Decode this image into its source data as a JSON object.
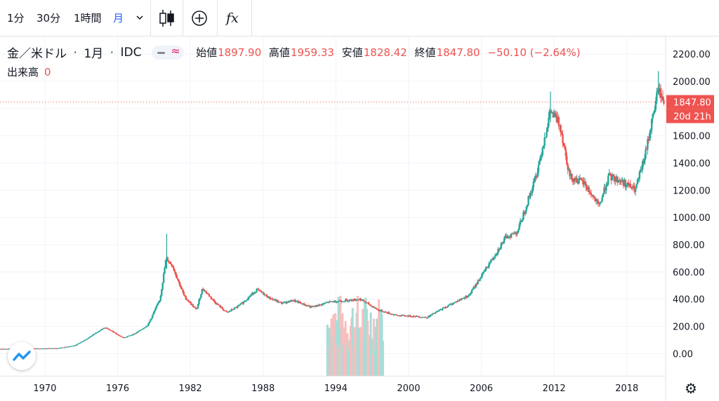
{
  "toolbar": {
    "interval_1m": "1分",
    "interval_30m": "30分",
    "interval_1h": "1時間",
    "interval_month": "月",
    "dropdown_icon": "chevron-down-icon",
    "candles_icon": "candlestick-icon",
    "add_icon": "plus-circle-icon",
    "indicator_label": "fx"
  },
  "legend": {
    "symbol": "金／米ドル",
    "separator": "·",
    "interval": "1月",
    "source": "IDC",
    "open_label": "始値",
    "open": "1897.90",
    "high_label": "高値",
    "high": "1959.33",
    "low_label": "安値",
    "low": "1828.42",
    "close_label": "終値",
    "close": "1847.80",
    "change": "−50.10 (−2.64%)"
  },
  "volume": {
    "label": "出来高",
    "value": "0"
  },
  "price_badge": {
    "price": "1847.80",
    "countdown": "20d 21h"
  },
  "colors": {
    "up": "#26a69a",
    "down": "#ef5350",
    "grid": "#f0f3fa",
    "text": "#131722",
    "accent": "#2962ff"
  },
  "chart_data": {
    "type": "candlestick",
    "y_ticks": [
      0,
      200,
      400,
      600,
      800,
      1000,
      1200,
      1400,
      1600,
      1800,
      2000,
      2200
    ],
    "y_tick_labels": [
      "0.00",
      "200.00",
      "400.00",
      "600.00",
      "800.00",
      "1000.00",
      "1200.00",
      "1400.00",
      "1600.00",
      "1800.00",
      "2000.00",
      "2200.00"
    ],
    "x_tick_labels": [
      "1970",
      "1976",
      "1982",
      "1988",
      "1994",
      "2000",
      "2006",
      "2012",
      "2018"
    ],
    "x_range": [
      1966.3,
      2021.2
    ],
    "y_range": [
      -163,
      2330
    ],
    "price_anchor": [
      [
        1966.3,
        35
      ],
      [
        1971.0,
        38
      ],
      [
        1972.5,
        60
      ],
      [
        1973.5,
        110
      ],
      [
        1974.5,
        170
      ],
      [
        1975.0,
        190
      ],
      [
        1976.5,
        115
      ],
      [
        1977.5,
        150
      ],
      [
        1978.5,
        210
      ],
      [
        1979.5,
        400
      ],
      [
        1980.0,
        700
      ],
      [
        1980.5,
        650
      ],
      [
        1981.5,
        420
      ],
      [
        1982.5,
        320
      ],
      [
        1983.0,
        480
      ],
      [
        1984.0,
        380
      ],
      [
        1985.0,
        300
      ],
      [
        1986.0,
        350
      ],
      [
        1987.5,
        470
      ],
      [
        1988.5,
        410
      ],
      [
        1989.5,
        370
      ],
      [
        1990.5,
        390
      ],
      [
        1992.0,
        340
      ],
      [
        1993.5,
        380
      ],
      [
        1996.0,
        400
      ],
      [
        1997.5,
        320
      ],
      [
        1999.0,
        280
      ],
      [
        2000.5,
        275
      ],
      [
        2001.5,
        265
      ],
      [
        2003.0,
        340
      ],
      [
        2005.0,
        430
      ],
      [
        2006.5,
        640
      ],
      [
        2008.0,
        850
      ],
      [
        2009.0,
        900
      ],
      [
        2010.5,
        1300
      ],
      [
        2011.7,
        1780
      ],
      [
        2012.5,
        1680
      ],
      [
        2013.3,
        1300
      ],
      [
        2014.5,
        1250
      ],
      [
        2015.7,
        1080
      ],
      [
        2016.5,
        1300
      ],
      [
        2017.5,
        1270
      ],
      [
        2018.7,
        1200
      ],
      [
        2019.5,
        1450
      ],
      [
        2020.6,
        1950
      ],
      [
        2021.0,
        1850
      ]
    ],
    "volume_window": [
      1993.3,
      1997.9
    ],
    "volume_max": 445
  }
}
